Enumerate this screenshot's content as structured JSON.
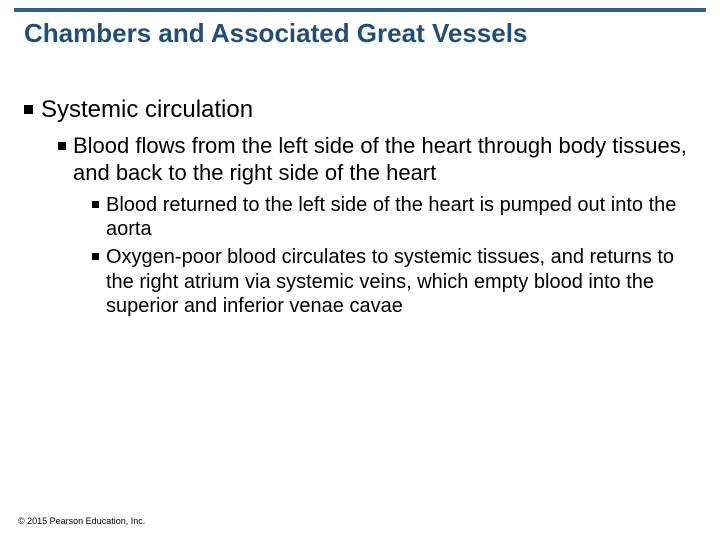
{
  "rule_color": "#2f5e8e",
  "title": {
    "text": "Chambers and Associated Great Vessels",
    "color": "#1f4e79",
    "fontsize": 26,
    "fontweight": "bold"
  },
  "bullets": {
    "l1": {
      "text": "Systemic circulation",
      "fontsize": 24
    },
    "l2": {
      "text": "Blood flows from the left side of the heart through body tissues, and back to the right side of the heart",
      "fontsize": 22
    },
    "l3a": {
      "text": "Blood returned to the left side of the heart is pumped out into the aorta",
      "fontsize": 20
    },
    "l3b": {
      "text": "Oxygen-poor blood circulates to systemic tissues, and returns to the right atrium via systemic veins, which empty blood into the superior and inferior venae cavae",
      "fontsize": 20
    }
  },
  "bullet_marker_color": "#000000",
  "text_color": "#000000",
  "background_color": "#ffffff",
  "copyright": "© 2015 Pearson Education, Inc.",
  "copyright_fontsize": 9
}
